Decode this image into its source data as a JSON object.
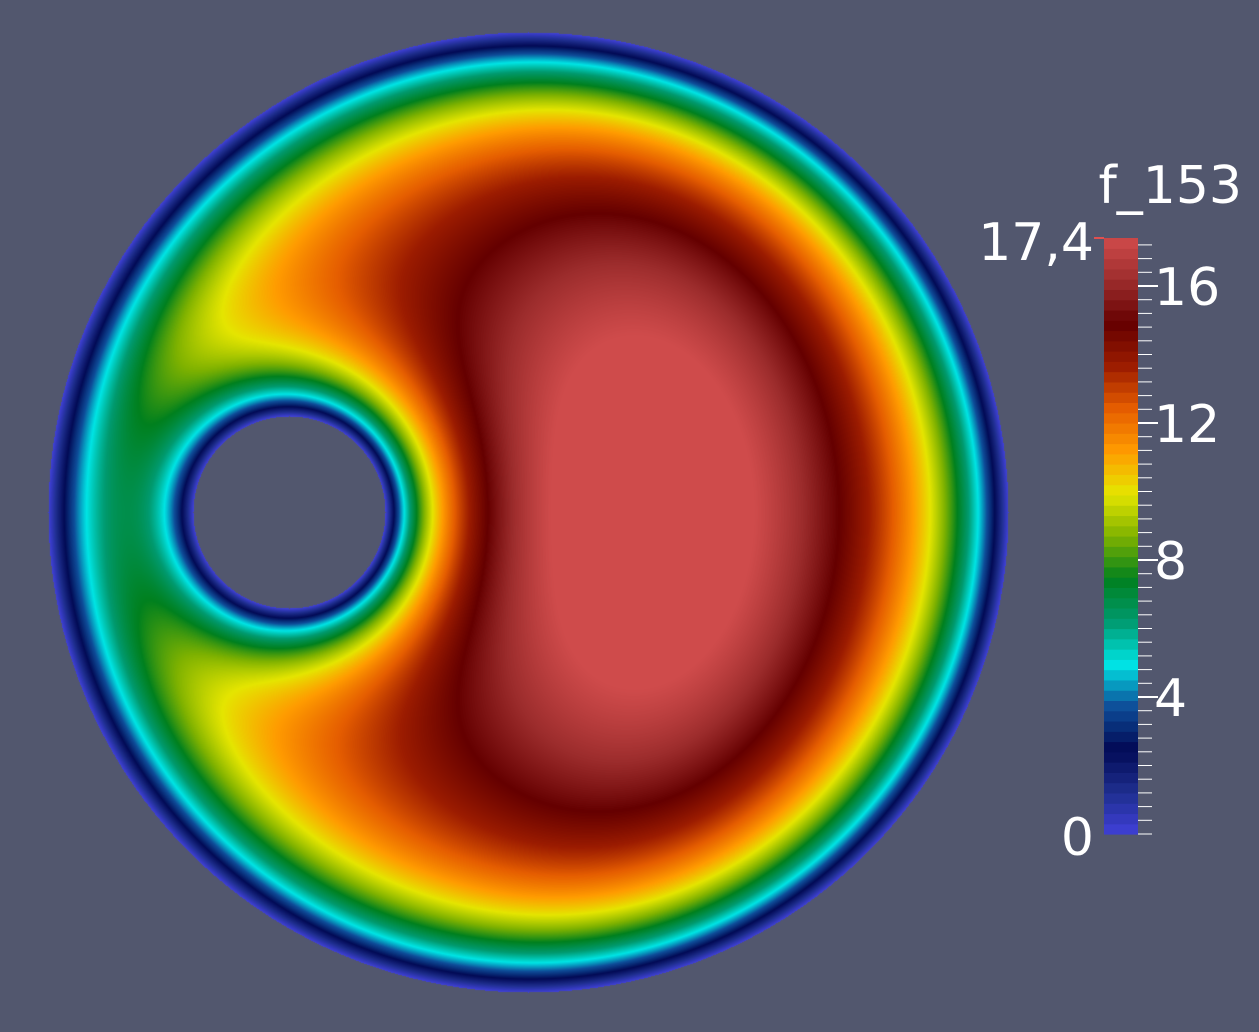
{
  "scalar_field": {
    "name": "f_153"
  },
  "color_legend": {
    "title": "f_153",
    "range_max_label": "17,4",
    "range_min_label": "0",
    "ticks": [
      {
        "value": 16,
        "label": "16"
      },
      {
        "value": 12,
        "label": "12"
      },
      {
        "value": 8,
        "label": "8"
      },
      {
        "value": 4,
        "label": "4"
      }
    ],
    "min": 0,
    "max": 17.4,
    "colormap": [
      "#4040d8",
      "#1e2e8e",
      "#020a55",
      "#0e4d99",
      "#00e5e5",
      "#009a6f",
      "#00801e",
      "#7fb200",
      "#e5e500",
      "#ff9b00",
      "#e55d00",
      "#9c1c00",
      "#650000",
      "#9c2c2c",
      "#cf4b4b"
    ]
  },
  "colors": {
    "background": "#52576e",
    "text": "#ffffff"
  }
}
